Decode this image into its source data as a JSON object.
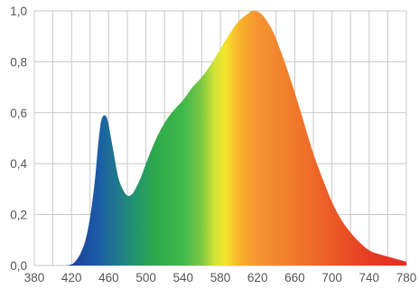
{
  "chart_data": {
    "type": "area",
    "title": "",
    "xlabel": "",
    "ylabel": "",
    "xlim": [
      380,
      780
    ],
    "ylim": [
      0,
      1.0
    ],
    "x_ticks": [
      380,
      420,
      460,
      500,
      540,
      580,
      620,
      660,
      700,
      740,
      780
    ],
    "x_tick_labels": [
      "380",
      "420",
      "460",
      "500",
      "540",
      "580",
      "620",
      "660",
      "700",
      "740",
      "780"
    ],
    "y_ticks": [
      0,
      0.2,
      0.4,
      0.6,
      0.8,
      1.0
    ],
    "y_tick_labels": [
      "0,0",
      "0,2",
      "0,4",
      "0,6",
      "0,8",
      "1,0"
    ],
    "grid": true,
    "fill": "visible-spectrum gradient by wavelength",
    "x": [
      380,
      410,
      420,
      425,
      430,
      435,
      440,
      445,
      448,
      450,
      452,
      455,
      458,
      460,
      465,
      470,
      475,
      480,
      485,
      490,
      495,
      500,
      510,
      520,
      530,
      540,
      550,
      560,
      570,
      580,
      590,
      600,
      610,
      615,
      620,
      625,
      630,
      635,
      640,
      650,
      660,
      670,
      680,
      690,
      700,
      710,
      720,
      730,
      740,
      750,
      760,
      770,
      780
    ],
    "values": [
      0,
      0,
      0.005,
      0.02,
      0.05,
      0.1,
      0.19,
      0.33,
      0.45,
      0.52,
      0.57,
      0.59,
      0.58,
      0.55,
      0.45,
      0.35,
      0.3,
      0.275,
      0.28,
      0.31,
      0.35,
      0.4,
      0.49,
      0.56,
      0.61,
      0.65,
      0.7,
      0.74,
      0.79,
      0.85,
      0.91,
      0.96,
      0.99,
      1.0,
      0.997,
      0.985,
      0.96,
      0.93,
      0.89,
      0.79,
      0.68,
      0.56,
      0.44,
      0.34,
      0.25,
      0.18,
      0.13,
      0.09,
      0.06,
      0.045,
      0.035,
      0.025,
      0.015
    ],
    "colors": {
      "grid": "#c8c8c8",
      "tick_text": "#555555",
      "spectrum_stops": [
        {
          "nm": 420,
          "color": "#1c3f9e"
        },
        {
          "nm": 450,
          "color": "#1b5fa5"
        },
        {
          "nm": 470,
          "color": "#1f7a8c"
        },
        {
          "nm": 490,
          "color": "#22966a"
        },
        {
          "nm": 510,
          "color": "#2fa94c"
        },
        {
          "nm": 540,
          "color": "#3fb84a"
        },
        {
          "nm": 560,
          "color": "#7fc944"
        },
        {
          "nm": 575,
          "color": "#d7e536"
        },
        {
          "nm": 585,
          "color": "#f4e52a"
        },
        {
          "nm": 600,
          "color": "#f8b42a"
        },
        {
          "nm": 620,
          "color": "#f59432"
        },
        {
          "nm": 660,
          "color": "#f07a2a"
        },
        {
          "nm": 700,
          "color": "#eb5a26"
        },
        {
          "nm": 740,
          "color": "#e63c24"
        },
        {
          "nm": 780,
          "color": "#e0301e"
        }
      ]
    }
  }
}
